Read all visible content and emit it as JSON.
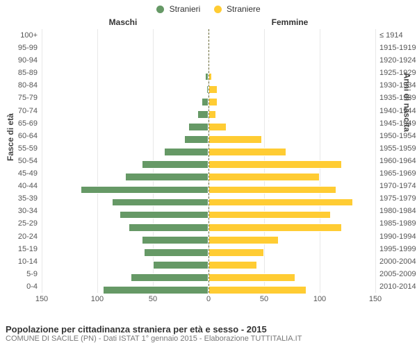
{
  "chart": {
    "type": "population-pyramid",
    "background_color": "#ffffff",
    "grid_color": "#e8e8e8",
    "center_line_color": "#666633",
    "legend": {
      "series": [
        {
          "label": "Stranieri",
          "color": "#669966"
        },
        {
          "label": "Straniere",
          "color": "#ffcc33"
        }
      ]
    },
    "gender_labels": {
      "left": "Maschi",
      "right": "Femmine"
    },
    "y_axis_title": "Fasce di età",
    "y2_axis_title": "Anni di nascita",
    "x_axis": {
      "max": 150,
      "ticks": [
        150,
        100,
        50,
        0,
        50,
        100,
        150
      ]
    },
    "age_groups": [
      {
        "age": "100+",
        "birth": "≤ 1914",
        "male": 0,
        "female": 0
      },
      {
        "age": "95-99",
        "birth": "1915-1919",
        "male": 0,
        "female": 0
      },
      {
        "age": "90-94",
        "birth": "1920-1924",
        "male": 0,
        "female": 0
      },
      {
        "age": "85-89",
        "birth": "1925-1929",
        "male": 3,
        "female": 3
      },
      {
        "age": "80-84",
        "birth": "1930-1934",
        "male": 2,
        "female": 8
      },
      {
        "age": "75-79",
        "birth": "1935-1939",
        "male": 6,
        "female": 8
      },
      {
        "age": "70-74",
        "birth": "1940-1944",
        "male": 10,
        "female": 7
      },
      {
        "age": "65-69",
        "birth": "1945-1949",
        "male": 18,
        "female": 16
      },
      {
        "age": "60-64",
        "birth": "1950-1954",
        "male": 22,
        "female": 48
      },
      {
        "age": "55-59",
        "birth": "1955-1959",
        "male": 40,
        "female": 70
      },
      {
        "age": "50-54",
        "birth": "1960-1964",
        "male": 60,
        "female": 120
      },
      {
        "age": "45-49",
        "birth": "1965-1969",
        "male": 75,
        "female": 100
      },
      {
        "age": "40-44",
        "birth": "1970-1974",
        "male": 115,
        "female": 115
      },
      {
        "age": "35-39",
        "birth": "1975-1979",
        "male": 87,
        "female": 130
      },
      {
        "age": "30-34",
        "birth": "1980-1984",
        "male": 80,
        "female": 110
      },
      {
        "age": "25-29",
        "birth": "1985-1989",
        "male": 72,
        "female": 120
      },
      {
        "age": "20-24",
        "birth": "1990-1994",
        "male": 60,
        "female": 63
      },
      {
        "age": "15-19",
        "birth": "1995-1999",
        "male": 58,
        "female": 50
      },
      {
        "age": "10-14",
        "birth": "2000-2004",
        "male": 50,
        "female": 44
      },
      {
        "age": "5-9",
        "birth": "2005-2009",
        "male": 70,
        "female": 78
      },
      {
        "age": "0-4",
        "birth": "2010-2014",
        "male": 95,
        "female": 88
      }
    ],
    "footer": {
      "title": "Popolazione per cittadinanza straniera per età e sesso - 2015",
      "subtitle": "COMUNE DI SACILE (PN) - Dati ISTAT 1° gennaio 2015 - Elaborazione TUTTITALIA.IT"
    },
    "styling": {
      "bar_fill_ratio": 0.65,
      "font_family": "Arial",
      "axis_label_fontsize": 11,
      "title_fontsize": 13
    }
  }
}
